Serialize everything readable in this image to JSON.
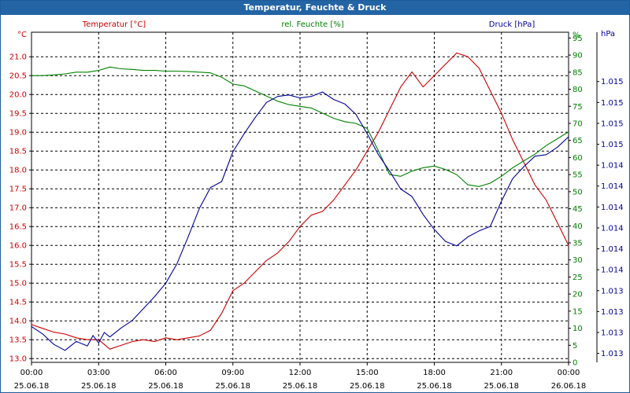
{
  "chart_data": {
    "type": "line",
    "title": "Temperatur, Feuchte & Druck",
    "x": [
      "00:00 25.06.18",
      "03:00 25.06.18",
      "06:00 25.06.18",
      "09:00 25.06.18",
      "12:00 25.06.18",
      "15:00 25.06.18",
      "18:00 25.06.18",
      "21:00 25.06.18",
      "00:00 26.06.18"
    ],
    "x_ticks": [
      {
        "time": "00:00",
        "date": "25.06.18",
        "hour": 0
      },
      {
        "time": "03:00",
        "date": "25.06.18",
        "hour": 3
      },
      {
        "time": "06:00",
        "date": "25.06.18",
        "hour": 6
      },
      {
        "time": "09:00",
        "date": "25.06.18",
        "hour": 9
      },
      {
        "time": "12:00",
        "date": "25.06.18",
        "hour": 12
      },
      {
        "time": "15:00",
        "date": "25.06.18",
        "hour": 15
      },
      {
        "time": "18:00",
        "date": "25.06.18",
        "hour": 18
      },
      {
        "time": "21:00",
        "date": "25.06.18",
        "hour": 21
      },
      {
        "time": "00:00",
        "date": "26.06.18",
        "hour": 24
      }
    ],
    "xlim": [
      0,
      24
    ],
    "grid": true,
    "axes": {
      "left": {
        "unit": "°C",
        "range": [
          12.9,
          21.65
        ],
        "ticks": [
          "13.0",
          "13.5",
          "14.0",
          "14.5",
          "15.0",
          "15.5",
          "16.0",
          "16.5",
          "17.0",
          "17.5",
          "18.0",
          "18.5",
          "19.0",
          "19.5",
          "20.0",
          "20.5",
          "21.0"
        ],
        "color": "#cc0000"
      },
      "right1": {
        "unit": "%",
        "range": [
          0,
          96.7
        ],
        "ticks": [
          "0",
          "5",
          "10",
          "15",
          "20",
          "25",
          "30",
          "35",
          "40",
          "45",
          "50",
          "55",
          "60",
          "65",
          "70",
          "75",
          "80",
          "85",
          "90",
          "95",
          "%"
        ],
        "color": "#008000"
      },
      "right2": {
        "unit": "hPa",
        "range": [
          1012.94,
          1015.15
        ],
        "ticks": [
          {
            "label": "1.013",
            "value": 1013.0
          },
          {
            "label": "1.013",
            "value": 1013.14
          },
          {
            "label": "1.013",
            "value": 1013.28
          },
          {
            "label": "1.013",
            "value": 1013.42
          },
          {
            "label": "1.014",
            "value": 1013.56
          },
          {
            "label": "1.014",
            "value": 1013.7
          },
          {
            "label": "1.014",
            "value": 1013.84
          },
          {
            "label": "1.014",
            "value": 1013.98
          },
          {
            "label": "1.014",
            "value": 1014.12
          },
          {
            "label": "1.014",
            "value": 1014.26
          },
          {
            "label": "1.015",
            "value": 1014.4
          },
          {
            "label": "1.015",
            "value": 1014.54
          },
          {
            "label": "1.015",
            "value": 1014.68
          },
          {
            "label": "1.015",
            "value": 1014.82
          }
        ],
        "color": "#000099"
      }
    },
    "series": [
      {
        "name": "Temperatur [°C]",
        "axis": "left",
        "color": "#cc0000",
        "x": [
          0,
          0.5,
          1,
          1.5,
          2,
          2.5,
          3,
          3.5,
          4,
          4.5,
          5,
          5.5,
          6,
          6.5,
          7,
          7.5,
          8,
          8.5,
          9,
          9.5,
          10,
          10.5,
          11,
          11.5,
          12,
          12.5,
          13,
          13.5,
          14,
          14.5,
          15,
          15.5,
          16,
          16.5,
          17,
          17.5,
          18,
          18.5,
          19,
          19.5,
          20,
          20.5,
          21,
          21.5,
          22,
          22.5,
          23,
          23.5,
          24
        ],
        "values": [
          13.9,
          13.8,
          13.7,
          13.65,
          13.55,
          13.5,
          13.5,
          13.25,
          13.35,
          13.45,
          13.5,
          13.45,
          13.55,
          13.5,
          13.55,
          13.6,
          13.75,
          14.2,
          14.8,
          15.0,
          15.3,
          15.6,
          15.8,
          16.1,
          16.5,
          16.8,
          16.9,
          17.2,
          17.6,
          18.0,
          18.5,
          19.0,
          19.6,
          20.2,
          20.6,
          20.2,
          20.5,
          20.8,
          21.1,
          21.0,
          20.7,
          20.1,
          19.5,
          18.8,
          18.2,
          17.6,
          17.2,
          16.6,
          16.0
        ]
      },
      {
        "name": "rel. Feuchte [%]",
        "axis": "right1",
        "color": "#008000",
        "x": [
          0,
          0.5,
          1,
          1.5,
          2,
          2.5,
          3,
          3.5,
          4,
          4.5,
          5,
          5.5,
          6,
          6.5,
          7,
          7.5,
          8,
          8.5,
          9,
          9.5,
          10,
          10.5,
          11,
          11.5,
          12,
          12.5,
          13,
          13.5,
          14,
          14.5,
          15,
          15.5,
          16,
          16.5,
          17,
          17.5,
          18,
          18.5,
          19,
          19.5,
          20,
          20.5,
          21,
          21.5,
          22,
          22.5,
          23,
          23.5,
          24
        ],
        "values": [
          84,
          84,
          84.2,
          84.5,
          85,
          85,
          85.5,
          86.5,
          86,
          85.8,
          85.5,
          85.5,
          85.3,
          85.3,
          85.2,
          85,
          84.8,
          83.5,
          81.5,
          81,
          79.5,
          78,
          76.5,
          75.5,
          75,
          74.5,
          73,
          71.5,
          70.5,
          70,
          68.5,
          62,
          55,
          54.5,
          56,
          57,
          57.5,
          56.5,
          55,
          52,
          51.5,
          52.5,
          54.5,
          57,
          59,
          61,
          63.5,
          65.5,
          67.5
        ]
      },
      {
        "name": "Druck [hPa]",
        "axis": "right2",
        "color": "#000099",
        "x": [
          0,
          0.5,
          1,
          1.5,
          2,
          2.5,
          2.75,
          3,
          3.25,
          3.5,
          4,
          4.5,
          5,
          5.5,
          6,
          6.5,
          7,
          7.5,
          8,
          8.5,
          9,
          9.5,
          10,
          10.5,
          11,
          11.5,
          12,
          12.5,
          13,
          13.5,
          14,
          14.5,
          15,
          15.5,
          16,
          16.5,
          17,
          17.5,
          18,
          18.5,
          19,
          19.5,
          20,
          20.5,
          21,
          21.5,
          22,
          22.5,
          23,
          23.5,
          24
        ],
        "values": [
          1013.18,
          1013.13,
          1013.06,
          1013.02,
          1013.08,
          1013.05,
          1013.12,
          1013.07,
          1013.14,
          1013.11,
          1013.17,
          1013.22,
          1013.3,
          1013.38,
          1013.47,
          1013.6,
          1013.78,
          1013.97,
          1014.11,
          1014.15,
          1014.35,
          1014.47,
          1014.58,
          1014.68,
          1014.72,
          1014.73,
          1014.71,
          1014.72,
          1014.75,
          1014.7,
          1014.67,
          1014.6,
          1014.47,
          1014.33,
          1014.22,
          1014.1,
          1014.05,
          1013.93,
          1013.83,
          1013.75,
          1013.72,
          1013.78,
          1013.82,
          1013.85,
          1014.02,
          1014.17,
          1014.25,
          1014.32,
          1014.33,
          1014.38,
          1014.45
        ]
      }
    ]
  }
}
